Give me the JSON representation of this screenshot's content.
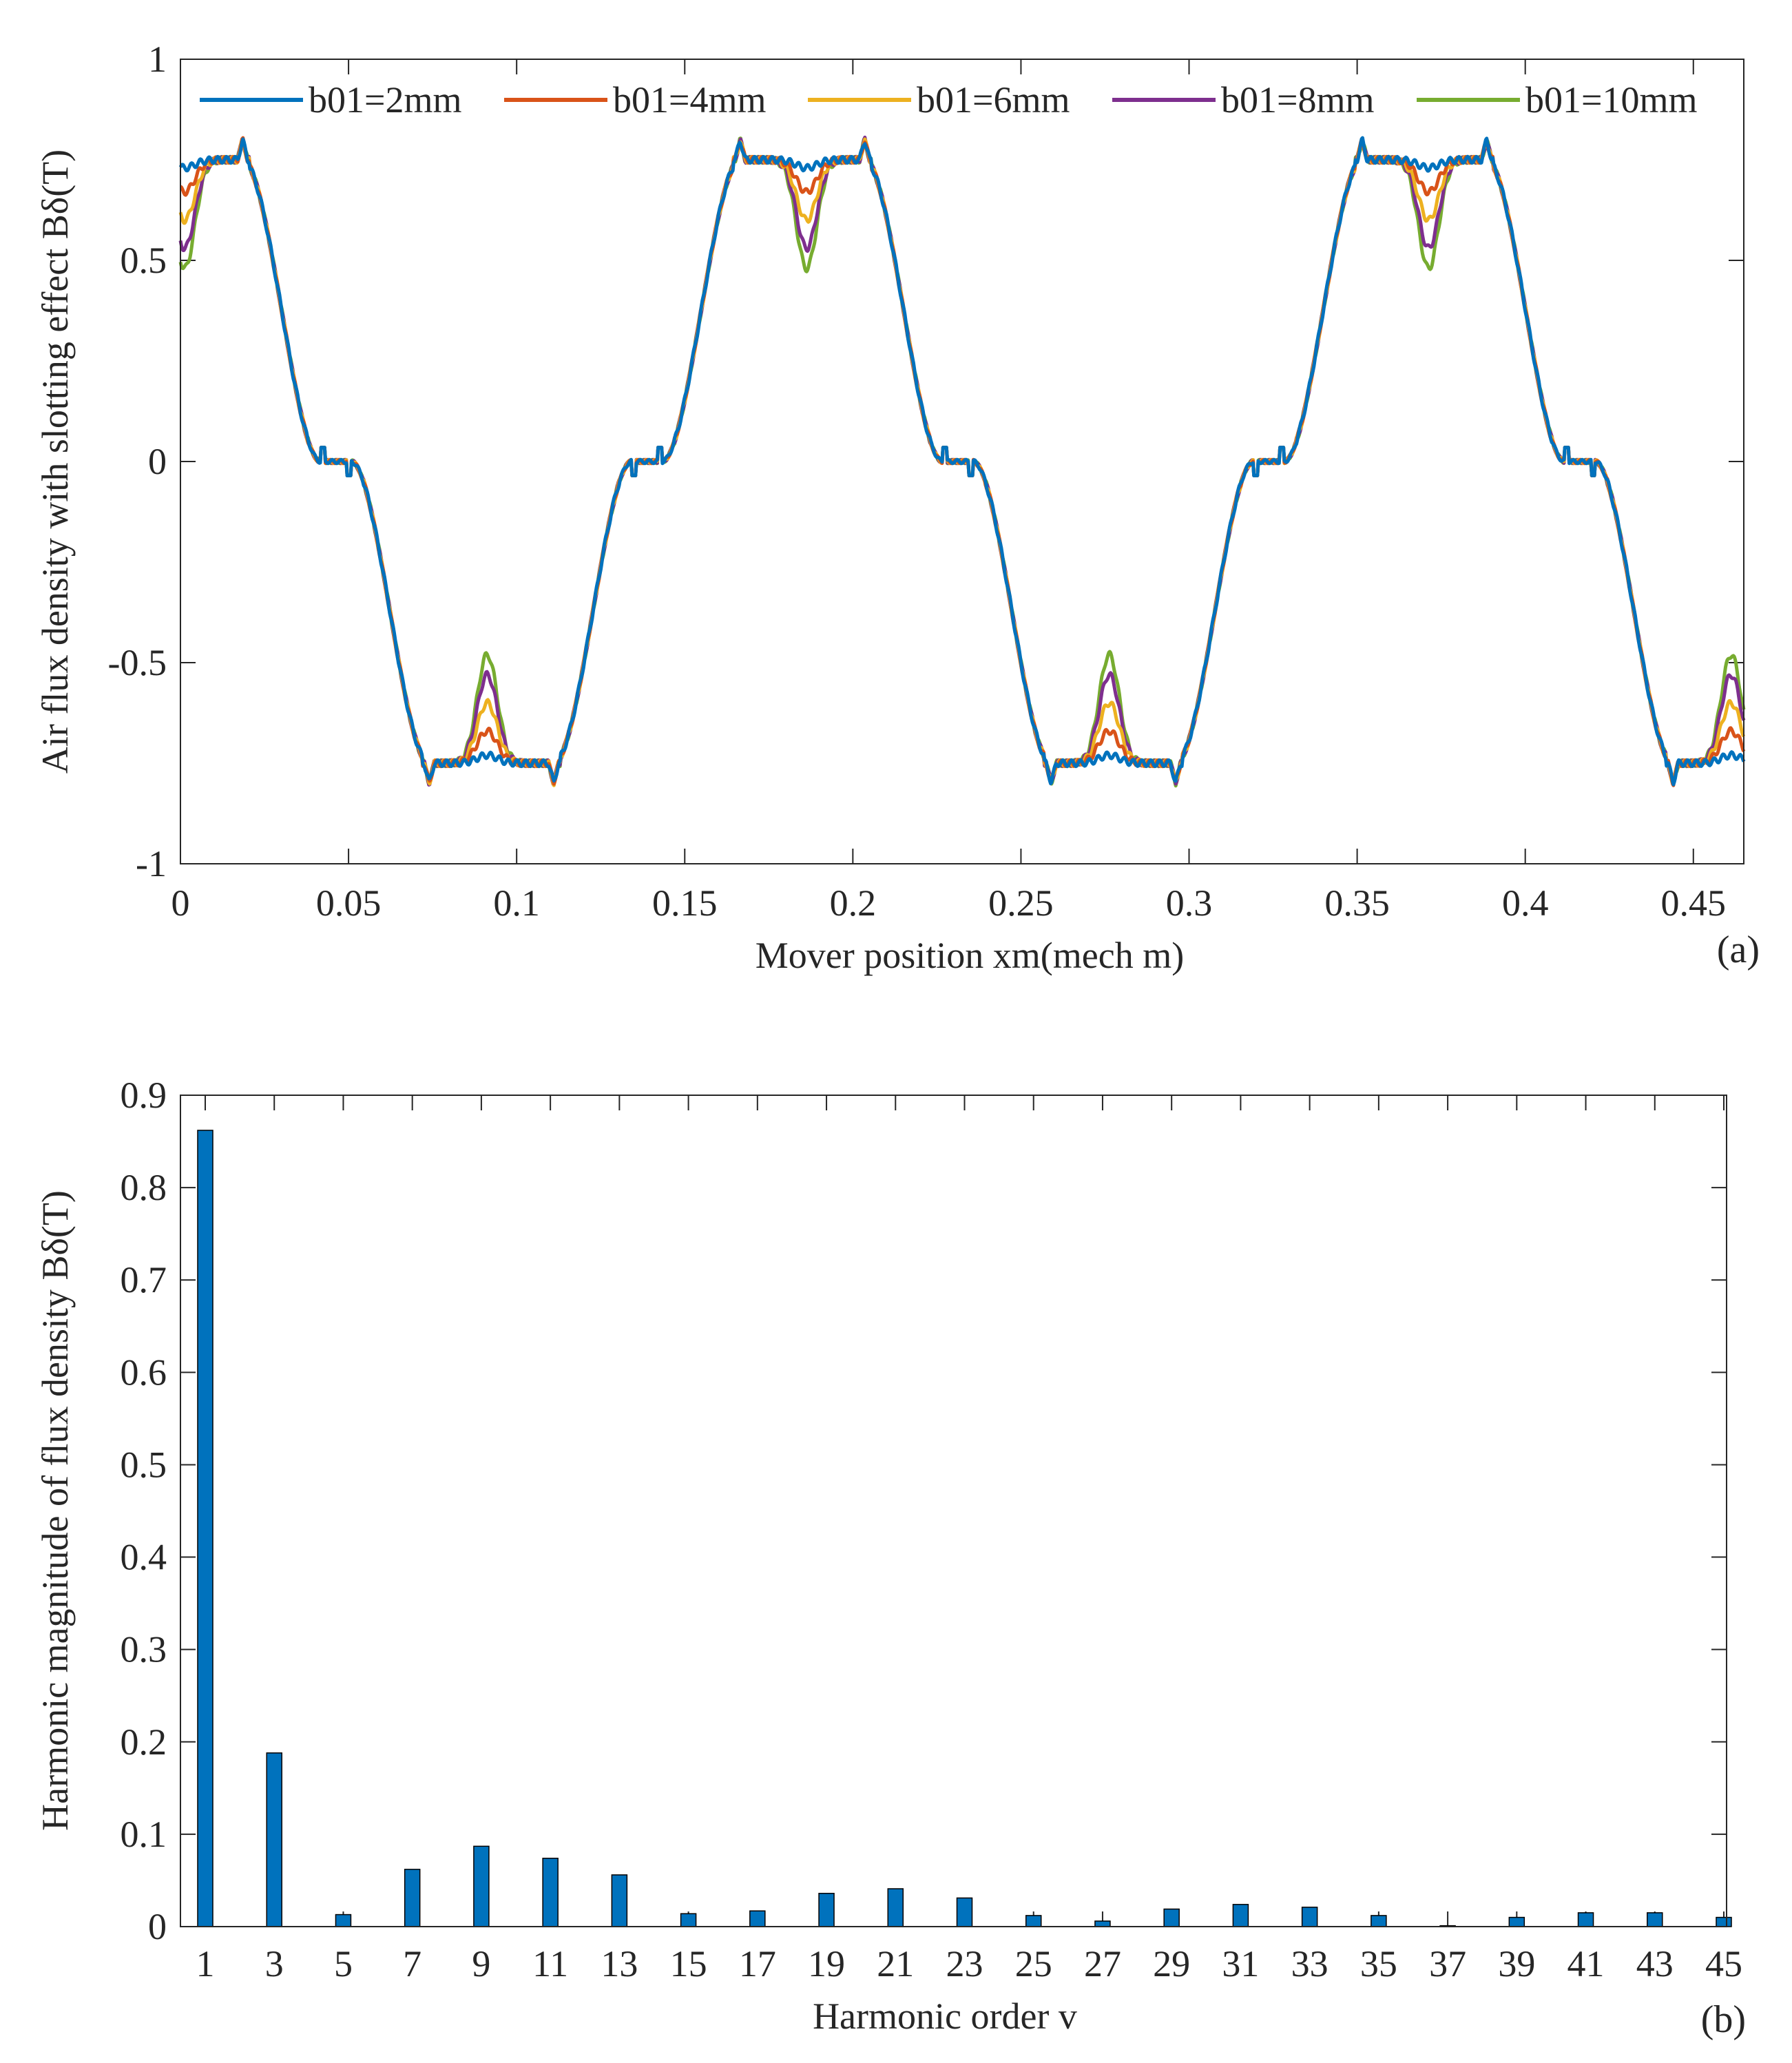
{
  "chart_data": [
    {
      "panel_label": "(a)",
      "type": "line",
      "title": "",
      "xlabel": "Mover position xm(mech m)",
      "ylabel": "Air flux density with slotting effect Bδ(T)",
      "xlim": [
        0,
        0.465
      ],
      "ylim": [
        -1,
        1
      ],
      "xticks": [
        0,
        0.05,
        0.1,
        0.15,
        0.2,
        0.25,
        0.3,
        0.35,
        0.4,
        0.45
      ],
      "xtick_labels": [
        "0",
        "0.05",
        "0.1",
        "0.15",
        "0.2",
        "0.25",
        "0.3",
        "0.35",
        "0.4",
        "0.45"
      ],
      "yticks": [
        -1,
        -0.5,
        0,
        0.5,
        1
      ],
      "ytick_labels": [
        "-1",
        "-0.5",
        "0",
        "0.5",
        "1"
      ],
      "legend_position": "top (horizontal, inside)",
      "waveform": {
        "plateau": 0.75,
        "edge_spike": 0.8,
        "pole_pitch": 0.0925,
        "positive_pole_centers": [
          0.0,
          0.0925,
          0.185,
          0.2775,
          0.37,
          0.4625
        ],
        "plateau_half_width": 0.0185,
        "zero_gap_half_width": 0.0045,
        "slot_dip_offset": 0.0375,
        "slot_dip_half_width": 0.0055
      },
      "series": [
        {
          "name": "b01=2mm",
          "color": "#0072BD",
          "slot_dip_value": 0.73
        },
        {
          "name": "b01=4mm",
          "color": "#D95319",
          "slot_dip_value": 0.67
        },
        {
          "name": "b01=6mm",
          "color": "#EDB120",
          "slot_dip_value": 0.6
        },
        {
          "name": "b01=8mm",
          "color": "#7E2F8E",
          "slot_dip_value": 0.53
        },
        {
          "name": "b01=10mm",
          "color": "#77AC30",
          "slot_dip_value": 0.48
        }
      ]
    },
    {
      "panel_label": "(b)",
      "type": "bar",
      "title": "",
      "xlabel": "Harmonic order v",
      "ylabel": "Harmonic magnitude of flux density Bδ(T)",
      "ylim": [
        0,
        0.9
      ],
      "yticks": [
        0,
        0.1,
        0.2,
        0.3,
        0.4,
        0.5,
        0.6,
        0.7,
        0.8,
        0.9
      ],
      "ytick_labels": [
        "0",
        "0.1",
        "0.2",
        "0.3",
        "0.4",
        "0.5",
        "0.6",
        "0.7",
        "0.8",
        "0.9"
      ],
      "bar_color": "#0072BD",
      "categories": [
        "1",
        "3",
        "5",
        "7",
        "9",
        "11",
        "13",
        "15",
        "17",
        "19",
        "21",
        "23",
        "25",
        "27",
        "29",
        "31",
        "33",
        "35",
        "37",
        "39",
        "41",
        "43",
        "45"
      ],
      "values": [
        0.862,
        0.188,
        0.013,
        0.062,
        0.087,
        0.074,
        0.056,
        0.014,
        0.017,
        0.036,
        0.041,
        0.031,
        0.012,
        0.006,
        0.019,
        0.024,
        0.021,
        0.012,
        0.001,
        0.01,
        0.015,
        0.015,
        0.01
      ]
    }
  ]
}
